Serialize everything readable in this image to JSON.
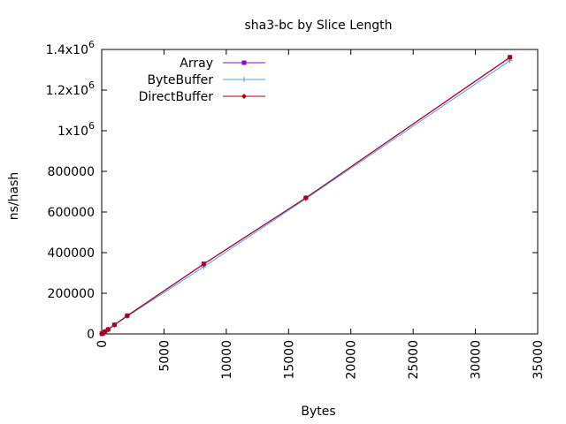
{
  "chart_data": {
    "type": "line",
    "title": "sha3-bc by Slice Length",
    "xlabel": "Bytes",
    "ylabel": "ns/hash",
    "xlim": [
      0,
      35000
    ],
    "ylim": [
      0,
      1400000
    ],
    "x_ticks": [
      {
        "value": 0,
        "label": "0"
      },
      {
        "value": 5000,
        "label": "5000"
      },
      {
        "value": 10000,
        "label": "10000"
      },
      {
        "value": 15000,
        "label": "15000"
      },
      {
        "value": 20000,
        "label": "20000"
      },
      {
        "value": 25000,
        "label": "25000"
      },
      {
        "value": 30000,
        "label": "30000"
      },
      {
        "value": 35000,
        "label": "35000"
      }
    ],
    "y_ticks": [
      {
        "value": 0,
        "label": "0"
      },
      {
        "value": 200000,
        "label": "200000"
      },
      {
        "value": 400000,
        "label": "400000"
      },
      {
        "value": 600000,
        "label": "600000"
      },
      {
        "value": 800000,
        "label": "800000"
      },
      {
        "value": 1000000,
        "label": "1x10",
        "exp": "6"
      },
      {
        "value": 1200000,
        "label": "1.2x10",
        "exp": "6"
      },
      {
        "value": 1400000,
        "label": "1.4x10",
        "exp": "6"
      }
    ],
    "legend_position": "top-left",
    "grid": false,
    "series": [
      {
        "name": "Array",
        "color": "#9400d3",
        "marker": "square",
        "x": [
          16,
          32,
          64,
          128,
          256,
          512,
          1024,
          2048,
          8192,
          16384,
          32768
        ],
        "y": [
          1000,
          1500,
          2500,
          5000,
          11000,
          22000,
          45000,
          90000,
          345000,
          670000,
          1362000
        ]
      },
      {
        "name": "ByteBuffer",
        "color": "#4fa3e0",
        "marker": "plus",
        "x": [
          16,
          32,
          64,
          128,
          256,
          512,
          1024,
          2048,
          8192,
          16384,
          32768
        ],
        "y": [
          1000,
          1500,
          2500,
          5000,
          10500,
          21000,
          43000,
          86000,
          330000,
          665000,
          1345000
        ]
      },
      {
        "name": "DirectBuffer",
        "color": "#b00000",
        "marker": "diamond",
        "x": [
          16,
          32,
          64,
          128,
          256,
          512,
          1024,
          2048,
          8192,
          16384,
          32768
        ],
        "y": [
          1000,
          1500,
          2500,
          5000,
          11000,
          22000,
          44500,
          89000,
          343000,
          669000,
          1360000
        ]
      }
    ]
  }
}
